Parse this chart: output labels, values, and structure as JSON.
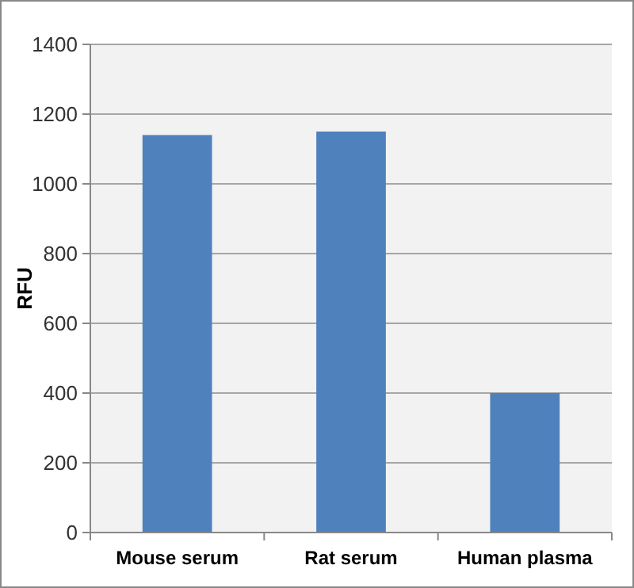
{
  "chart_data": {
    "type": "bar",
    "ylabel": "RFU",
    "categories": [
      "Mouse serum",
      "Rat serum",
      "Human plasma"
    ],
    "values": [
      1140,
      1150,
      400
    ],
    "color": "#4f81bd",
    "ylim": [
      0,
      1400
    ],
    "yticks": [
      0,
      200,
      400,
      600,
      800,
      1000,
      1200,
      1400
    ],
    "grid": "y"
  }
}
